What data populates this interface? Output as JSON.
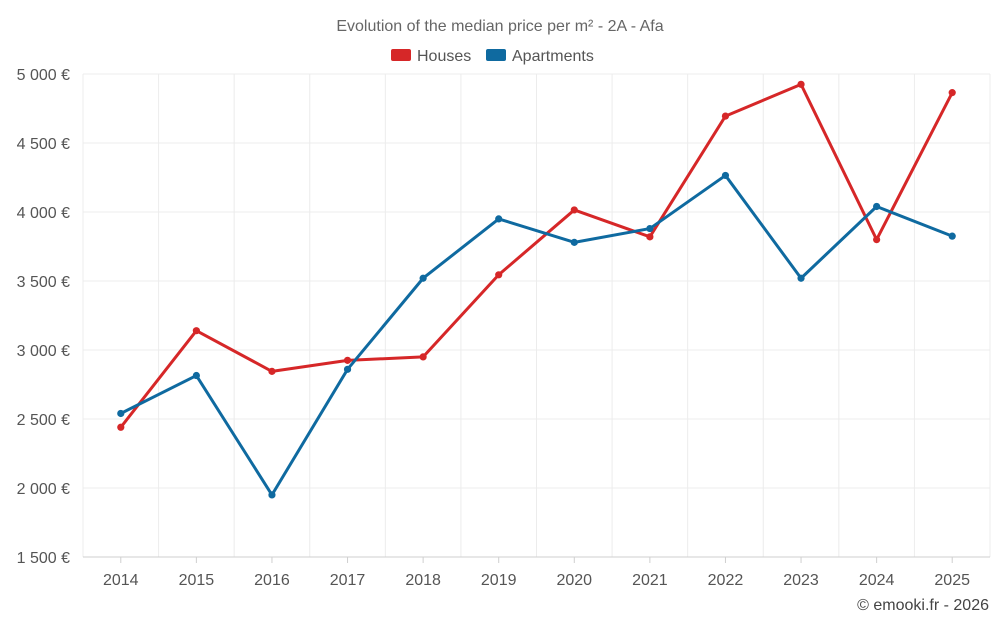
{
  "chart_data": {
    "type": "line",
    "title": "Evolution of the median price per m² - 2A - Afa",
    "categories": [
      "2014",
      "2015",
      "2016",
      "2017",
      "2018",
      "2019",
      "2020",
      "2021",
      "2022",
      "2023",
      "2024",
      "2025"
    ],
    "series": [
      {
        "name": "Houses",
        "color": "#d62728",
        "values": [
          2440,
          3140,
          2845,
          2925,
          2950,
          3545,
          4015,
          3820,
          4695,
          4925,
          3800,
          4865
        ]
      },
      {
        "name": "Apartments",
        "color": "#0f6aa0",
        "values": [
          2540,
          2815,
          1950,
          2860,
          3520,
          3950,
          3780,
          3880,
          4265,
          3520,
          4040,
          3825
        ]
      }
    ],
    "ylim": [
      1500,
      5000
    ],
    "yticks": [
      1500,
      2000,
      2500,
      3000,
      3500,
      4000,
      4500,
      5000
    ],
    "ytick_labels": [
      "1 500 €",
      "2 000 €",
      "2 500 €",
      "3 000 €",
      "3 500 €",
      "4 000 €",
      "4 500 €",
      "5 000 €"
    ],
    "xlabel": "",
    "ylabel": "",
    "legend_position": "top-center",
    "grid": true
  },
  "credit": "© emooki.fr - 2026"
}
